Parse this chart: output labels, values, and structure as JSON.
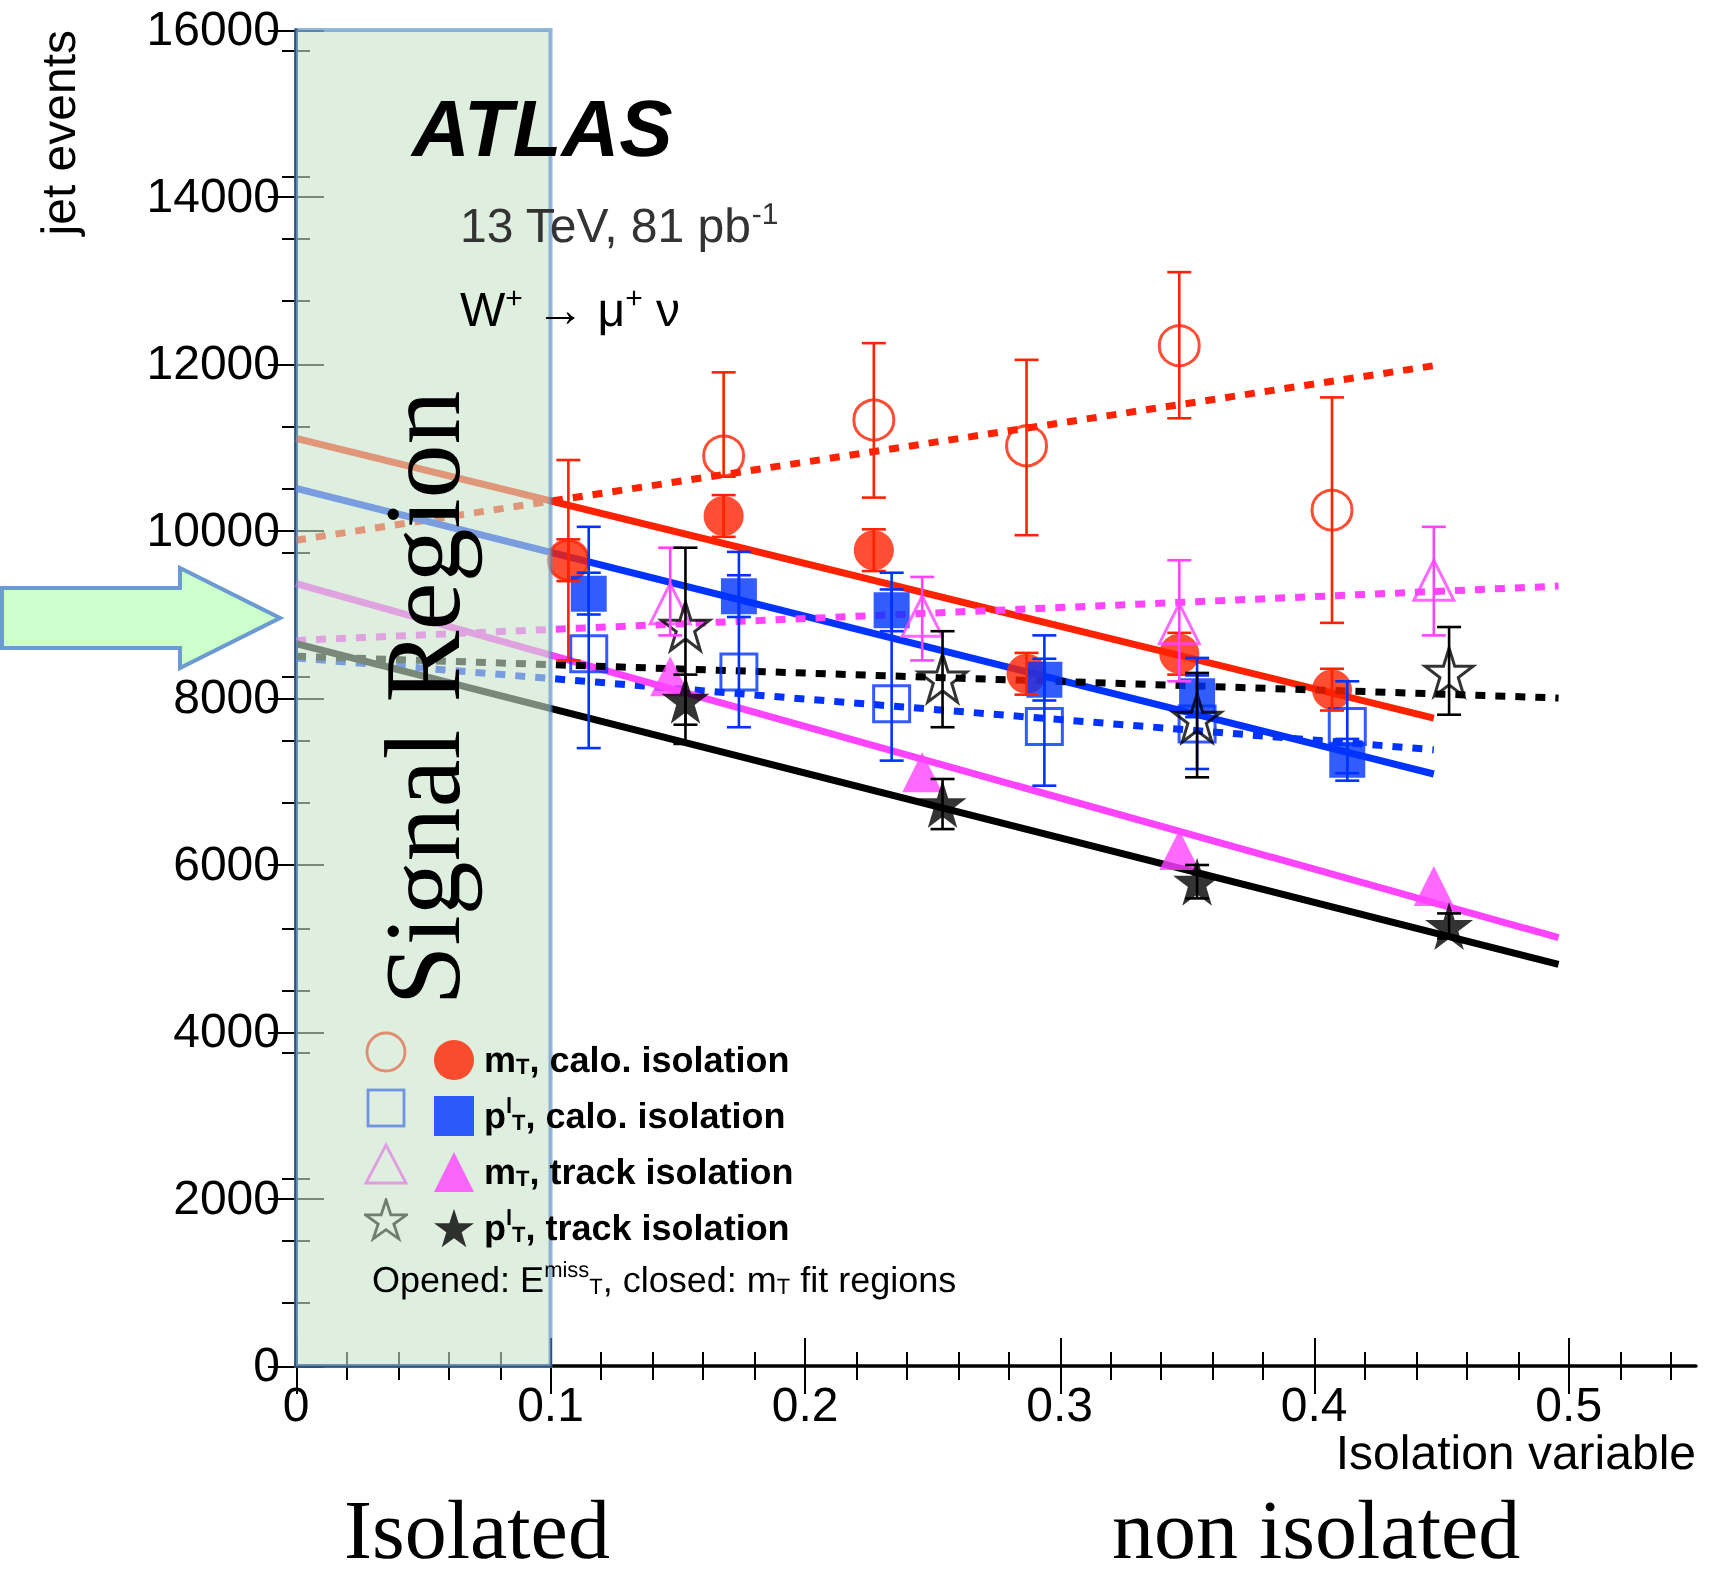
{
  "chart_data": {
    "type": "scatter",
    "ylabel": "jet events",
    "xlabel": "Isolation variable",
    "annotations": [
      "ATLAS",
      "13 TeV, 81 pb$^{-1}$",
      "W$^{+}$ → μ$^{+}$ ν",
      "Opened: E$^{miss}$$_{T}$, closed: m$_{T}$ fit regions",
      "Isolated",
      "non isolated"
    ],
    "xlim": [
      0,
      0.55
    ],
    "xticks": [
      0,
      0.1,
      0.2,
      0.3,
      0.4,
      0.5
    ],
    "ylim": [
      0,
      16000
    ],
    "yticks": [
      0,
      2000,
      4000,
      6000,
      8000,
      10000,
      12000,
      14000,
      16000
    ],
    "grid": false,
    "legend": "bottom left",
    "bands": [
      {
        "axis": "x",
        "from": 0,
        "to": 0.1,
        "label": "Signal Region",
        "color": "#c9e5c9"
      }
    ],
    "series": [
      {
        "name": "m$_{T}$, calo. isolation",
        "color": "#ff2200",
        "marker": "circle",
        "x": [
          0.107,
          0.168,
          0.227,
          0.287,
          0.347,
          0.407
        ],
        "values": [
          9650,
          10180,
          9770,
          8290,
          8530,
          8100
        ],
        "errors": [
          250,
          250,
          250,
          250,
          250,
          250
        ]
      },
      {
        "color": "#ff2200",
        "marker": "circle-open",
        "x": [
          0.107,
          0.168,
          0.227,
          0.287,
          0.347,
          0.407
        ],
        "values": [
          9650,
          10900,
          11330,
          11020,
          12220,
          10250
        ],
        "errors": [
          [
            8450,
            10850
          ],
          [
            10650,
            11900
          ],
          [
            10400,
            12250
          ],
          [
            9950,
            12050
          ],
          [
            11350,
            13100
          ],
          [
            8900,
            11600
          ]
        ]
      },
      {
        "name": "p$^{l}$$_{T}$, calo. isolation",
        "color": "#0033ff",
        "marker": "square",
        "x": [
          0.115,
          0.174,
          0.234,
          0.294,
          0.354,
          0.413
        ],
        "values": [
          9250,
          9220,
          9050,
          8220,
          8020,
          7260
        ],
        "errors": [
          250,
          250,
          250,
          250,
          250,
          250
        ]
      },
      {
        "color": "#0033ff",
        "marker": "square-open",
        "x": [
          0.115,
          0.174,
          0.234,
          0.294,
          0.354,
          0.413
        ],
        "values": [
          8530,
          8310,
          7930,
          7660,
          7690,
          7660
        ],
        "errors": [
          [
            7400,
            10050
          ],
          [
            7650,
            9750
          ],
          [
            7250,
            9500
          ],
          [
            6950,
            8750
          ],
          [
            7150,
            8480
          ],
          [
            7100,
            8200
          ]
        ]
      },
      {
        "name": "m$_{T}$, track isolation",
        "color": "#ff44ff",
        "marker": "triangle",
        "x": [
          0.147,
          0.246,
          0.347,
          0.447
        ],
        "values": [
          8260,
          7110,
          6180,
          5750
        ]
      },
      {
        "color": "#ff44ff",
        "marker": "triangle-open",
        "x": [
          0.147,
          0.246,
          0.347,
          0.447
        ],
        "values": [
          9130,
          8980,
          8890,
          9410
        ],
        "errors": [
          [
            8750,
            9800
          ],
          [
            8450,
            9450
          ],
          [
            8200,
            9650
          ],
          [
            8750,
            10050
          ]
        ]
      },
      {
        "name": "p$^{l}$$_{T}$, track isolation",
        "color": "#000000",
        "marker": "star",
        "x": [
          0.153,
          0.254,
          0.354,
          0.453
        ],
        "values": [
          7980,
          6730,
          5800,
          5270
        ],
        "errors": [
          300,
          300,
          200,
          150
        ]
      },
      {
        "color": "#000000",
        "marker": "star-open",
        "x": [
          0.153,
          0.254,
          0.354,
          0.453
        ],
        "values": [
          8860,
          8240,
          7760,
          8310
        ],
        "errors": [
          [
            7450,
            9800
          ],
          [
            7650,
            8800
          ],
          [
            7050,
            8300
          ],
          [
            7800,
            8850
          ]
        ]
      },
      {
        "type": "line",
        "color": "#ff2200",
        "line_style": "solid",
        "marker": "none",
        "x": [
          0,
          0.447
        ],
        "values": [
          11110,
          7760
        ]
      },
      {
        "type": "line",
        "color": "#ff2200",
        "line_style": "dotted",
        "marker": "none",
        "x": [
          0,
          0.447
        ],
        "values": [
          9890,
          11980
        ]
      },
      {
        "type": "line",
        "color": "#0033ff",
        "line_style": "solid",
        "marker": "none",
        "x": [
          0,
          0.447
        ],
        "values": [
          10510,
          7090
        ]
      },
      {
        "type": "line",
        "color": "#0033ff",
        "line_style": "dotted",
        "marker": "none",
        "x": [
          0,
          0.447
        ],
        "values": [
          8480,
          7380
        ]
      },
      {
        "type": "line",
        "color": "#ff44ff",
        "line_style": "solid",
        "marker": "none",
        "x": [
          0,
          0.496
        ],
        "values": [
          9370,
          5130
        ]
      },
      {
        "type": "line",
        "color": "#ff44ff",
        "line_style": "dotted",
        "marker": "none",
        "x": [
          0,
          0.496
        ],
        "values": [
          8690,
          9340
        ]
      },
      {
        "type": "line",
        "color": "#000000",
        "line_style": "solid",
        "marker": "none",
        "x": [
          0,
          0.496
        ],
        "values": [
          8650,
          4810
        ]
      },
      {
        "type": "line",
        "color": "#000000",
        "line_style": "dotted",
        "marker": "none",
        "x": [
          0,
          0.496
        ],
        "values": [
          8500,
          8000
        ]
      }
    ]
  }
}
